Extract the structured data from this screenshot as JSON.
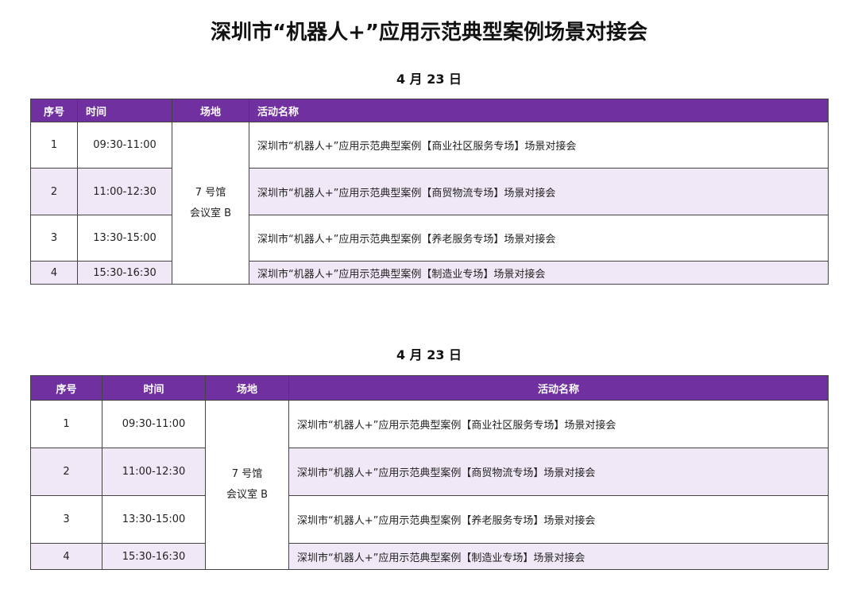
{
  "title": "深圳市“机器人+”应用示范典型案例场景对接会",
  "colors": {
    "header": "#7030a0",
    "alt_row": "#f0e8f6"
  },
  "tables": [
    {
      "date": "4 月 23 日",
      "headers": [
        "序号",
        "时间",
        "场地",
        "活动名称"
      ],
      "venue_line1": "7 号馆",
      "venue_line2": "会议室 B",
      "rows": [
        {
          "no": "1",
          "time": "09:30-11:00",
          "name": "深圳市“机器人+”应用示范典型案例【商业社区服务专场】场景对接会"
        },
        {
          "no": "2",
          "time": "11:00-12:30",
          "name": "深圳市“机器人+”应用示范典型案例【商贸物流专场】场景对接会"
        },
        {
          "no": "3",
          "time": "13:30-15:00",
          "name": "深圳市“机器人+”应用示范典型案例【养老服务专场】场景对接会"
        },
        {
          "no": "4",
          "time": "15:30-16:30",
          "name": "深圳市“机器人+”应用示范典型案例【制造业专场】场景对接会"
        }
      ]
    },
    {
      "date": "4 月 23 日",
      "headers": [
        "序号",
        "时间",
        "场地",
        "活动名称"
      ],
      "venue_line1": "7 号馆",
      "venue_line2": "会议室 B",
      "rows": [
        {
          "no": "1",
          "time": "09:30-11:00",
          "name": "深圳市“机器人+”应用示范典型案例【商业社区服务专场】场景对接会"
        },
        {
          "no": "2",
          "time": "11:00-12:30",
          "name": "深圳市“机器人+”应用示范典型案例【商贸物流专场】场景对接会"
        },
        {
          "no": "3",
          "time": "13:30-15:00",
          "name": "深圳市“机器人+”应用示范典型案例【养老服务专场】场景对接会"
        },
        {
          "no": "4",
          "time": "15:30-16:30",
          "name": "深圳市“机器人+”应用示范典型案例【制造业专场】场景对接会"
        }
      ]
    }
  ]
}
